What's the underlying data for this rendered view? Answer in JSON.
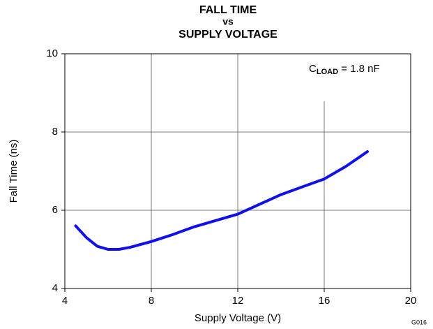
{
  "chart_data": {
    "type": "line",
    "title": [
      "FALL TIME",
      "vs",
      "SUPPLY VOLTAGE"
    ],
    "x_label": "Supply Voltage (V)",
    "y_label": "Fall Time (ns)",
    "annotation": {
      "symbol": "C",
      "subscript": "LOAD",
      "text": " = 1.8 nF"
    },
    "footnote": "G016",
    "x": [
      4.5,
      5,
      5.5,
      6,
      6.5,
      7,
      8,
      9,
      10,
      11,
      12,
      13,
      14,
      15,
      16,
      17,
      18
    ],
    "series": [
      {
        "color": "#1010ee",
        "values": [
          5.6,
          5.3,
          5.08,
          5.0,
          5.0,
          5.05,
          5.2,
          5.38,
          5.58,
          5.74,
          5.9,
          6.15,
          6.4,
          6.6,
          6.8,
          7.12,
          7.5
        ]
      }
    ],
    "xlim": [
      4,
      20
    ],
    "xticks": [
      4,
      8,
      12,
      16,
      20
    ],
    "ylim": [
      4,
      10
    ],
    "yticks": [
      4,
      6,
      8,
      10
    ],
    "grid": true
  }
}
